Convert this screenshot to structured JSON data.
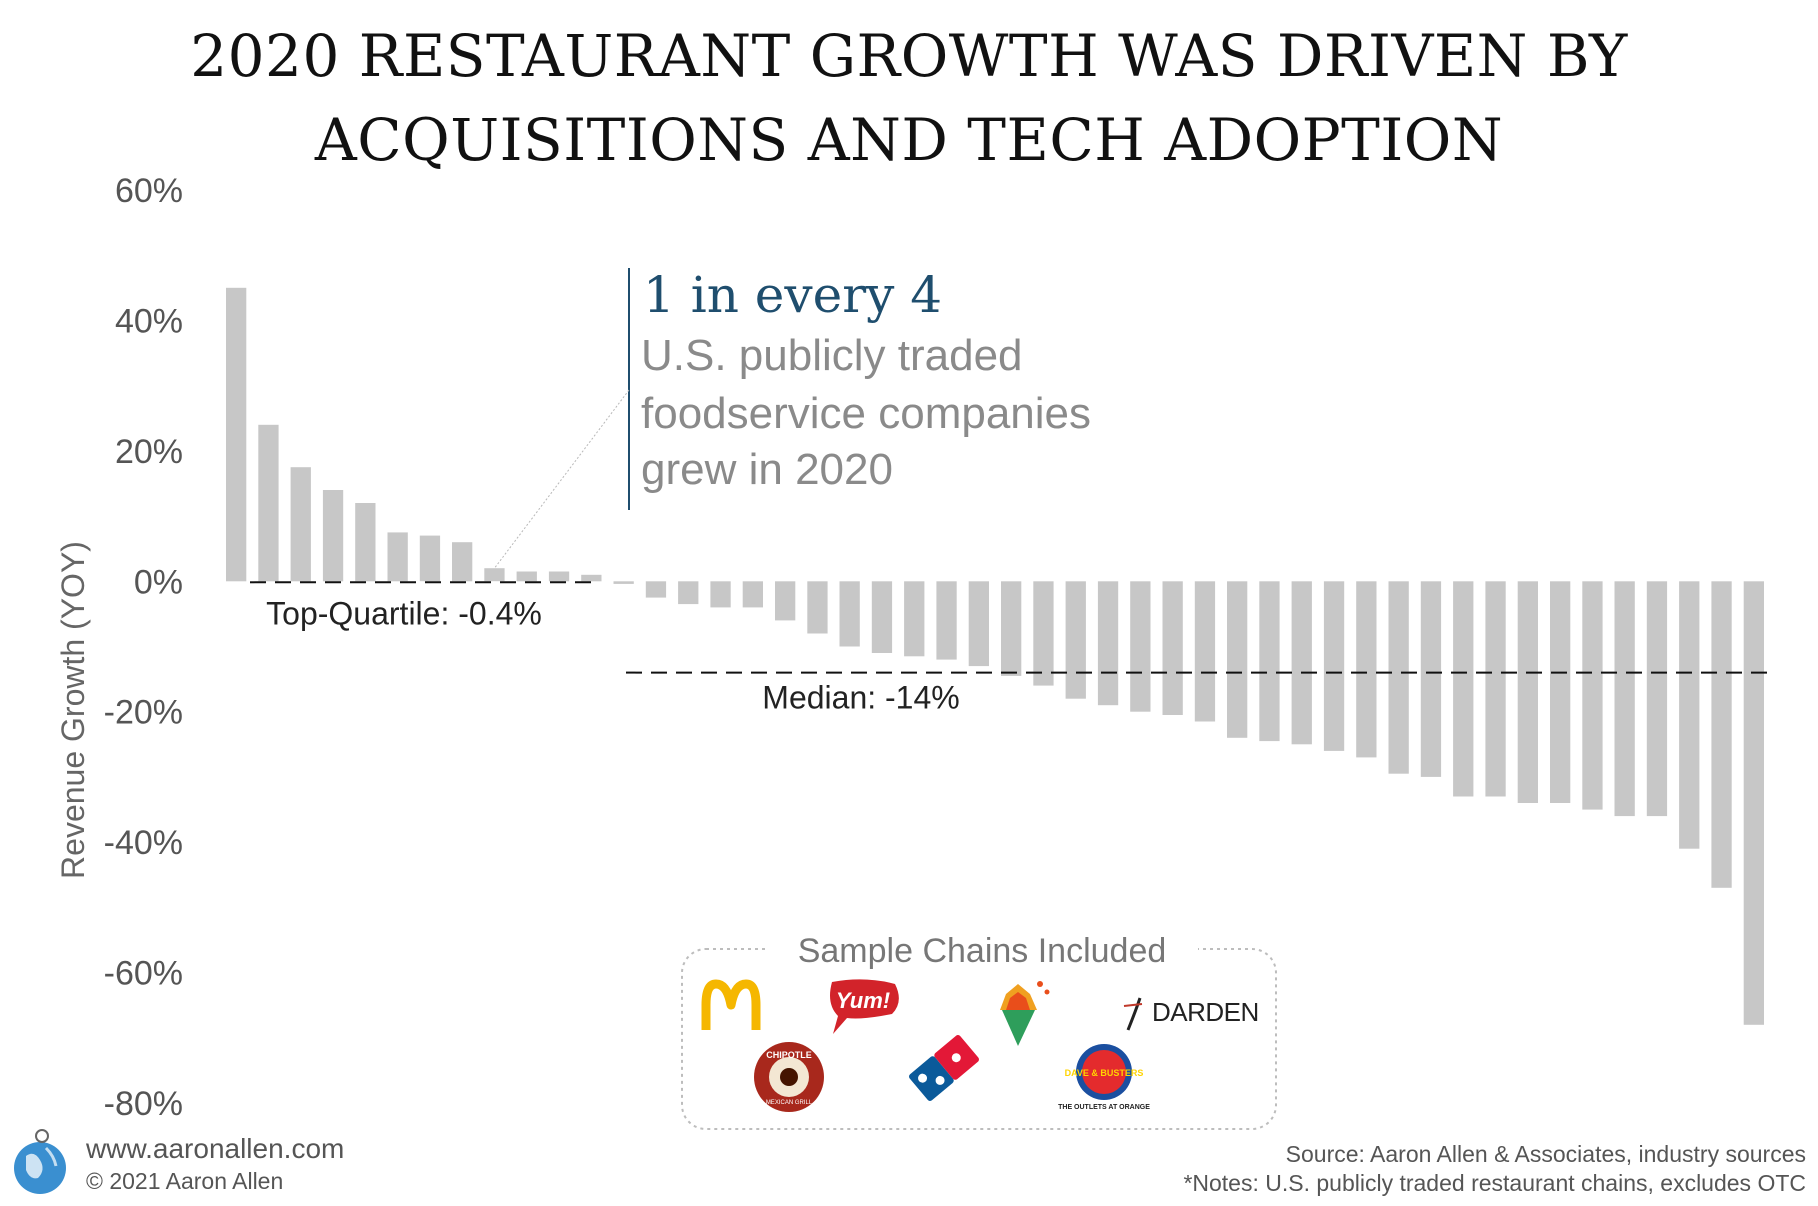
{
  "title_line1": "2020 RESTAURANT GROWTH WAS DRIVEN BY",
  "title_line2": "ACQUISITIONS AND TECH ADOPTION",
  "chart_data": {
    "type": "bar",
    "ylabel": "Revenue Growth (YOY)",
    "ylim": [
      -80,
      60
    ],
    "yticks": [
      60,
      40,
      20,
      0,
      -20,
      -40,
      -60,
      -80
    ],
    "ytick_labels": [
      "60%",
      "40%",
      "20%",
      "0%",
      "-20%",
      "-40%",
      "-60%",
      "-80%"
    ],
    "values": [
      45,
      24,
      17.5,
      14,
      12,
      7.5,
      7,
      6,
      2,
      1.5,
      1.5,
      1,
      -0.4,
      -2.5,
      -3.5,
      -4,
      -4,
      -6,
      -8,
      -10,
      -11,
      -11.5,
      -12,
      -13,
      -14.5,
      -16,
      -18,
      -19,
      -20,
      -20.5,
      -21.5,
      -24,
      -24.5,
      -25,
      -26,
      -27,
      -29.5,
      -30,
      -33,
      -33,
      -34,
      -34,
      -35,
      -36,
      -36,
      -41,
      -47,
      -68
    ],
    "reference_lines": [
      {
        "label": "Top-Quartile: -0.4%",
        "value": -0.4
      },
      {
        "label": "Median: -14%",
        "value": -14
      }
    ],
    "grid": false,
    "legend": "none"
  },
  "annotation": {
    "headline": "1 in every 4",
    "lines": [
      "U.S. publicly traded",
      "foodservice companies",
      "grew in 2020"
    ]
  },
  "sample_chains": {
    "title": "Sample Chains Included",
    "logos": [
      "mcdonalds-logo",
      "yum-logo",
      "wingstop-logo",
      "darden-logo",
      "chipotle-logo",
      "dominos-logo",
      "dave-busters-logo"
    ],
    "yum_text": "Yum!",
    "darden_text": "DARDEN",
    "chipotle_text": "CHIPOTLE",
    "chipotle_sub": "MEXICAN GRILL",
    "dave_text": "DAVE & BUSTERS",
    "dave_sub": "THE OUTLETS AT ORANGE"
  },
  "footer": {
    "site": "www.aaronallen.com",
    "copyright": "© 2021 Aaron Allen",
    "source": "Source: Aaron Allen & Associates, industry sources",
    "notes": "*Notes: U.S. publicly traded restaurant chains, excludes OTC"
  }
}
